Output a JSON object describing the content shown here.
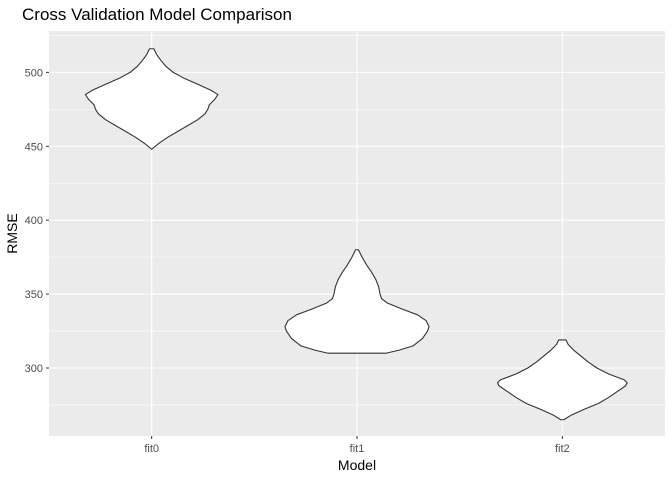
{
  "chart_data": {
    "type": "violin",
    "title": "Cross Validation Model Comparison",
    "xlabel": "Model",
    "ylabel": "RMSE",
    "categories": [
      "fit0",
      "fit1",
      "fit2"
    ],
    "yticks": [
      300,
      350,
      400,
      450,
      500
    ],
    "ylim": [
      254,
      528
    ],
    "grid": true,
    "fill_color": "#ffffff",
    "outline_color": "#333333",
    "panel_color": "#ebebeb",
    "violins": [
      {
        "category": "fit0",
        "min": 448,
        "max": 516,
        "density": [
          [
            448,
            0.0
          ],
          [
            452,
            0.1
          ],
          [
            456,
            0.22
          ],
          [
            460,
            0.36
          ],
          [
            464,
            0.5
          ],
          [
            468,
            0.64
          ],
          [
            472,
            0.74
          ],
          [
            475,
            0.78
          ],
          [
            478,
            0.8
          ],
          [
            482,
            0.88
          ],
          [
            485,
            0.92
          ],
          [
            488,
            0.82
          ],
          [
            492,
            0.64
          ],
          [
            496,
            0.45
          ],
          [
            500,
            0.3
          ],
          [
            504,
            0.2
          ],
          [
            508,
            0.13
          ],
          [
            512,
            0.07
          ],
          [
            516,
            0.03
          ]
        ]
      },
      {
        "category": "fit1",
        "min": 310,
        "max": 380,
        "density": [
          [
            310,
            0.4
          ],
          [
            312,
            0.58
          ],
          [
            315,
            0.78
          ],
          [
            320,
            0.91
          ],
          [
            325,
            0.98
          ],
          [
            328,
            1.0
          ],
          [
            332,
            0.96
          ],
          [
            336,
            0.84
          ],
          [
            340,
            0.62
          ],
          [
            344,
            0.42
          ],
          [
            347,
            0.34
          ],
          [
            350,
            0.32
          ],
          [
            355,
            0.3
          ],
          [
            360,
            0.26
          ],
          [
            365,
            0.2
          ],
          [
            370,
            0.13
          ],
          [
            375,
            0.07
          ],
          [
            378,
            0.04
          ],
          [
            380,
            0.02
          ]
        ]
      },
      {
        "category": "fit2",
        "min": 265,
        "max": 319,
        "density": [
          [
            265,
            0.02
          ],
          [
            268,
            0.12
          ],
          [
            272,
            0.3
          ],
          [
            276,
            0.5
          ],
          [
            280,
            0.64
          ],
          [
            284,
            0.76
          ],
          [
            288,
            0.88
          ],
          [
            290,
            0.9
          ],
          [
            292,
            0.86
          ],
          [
            296,
            0.64
          ],
          [
            300,
            0.48
          ],
          [
            304,
            0.36
          ],
          [
            308,
            0.26
          ],
          [
            312,
            0.16
          ],
          [
            316,
            0.08
          ],
          [
            319,
            0.05
          ]
        ]
      }
    ]
  }
}
